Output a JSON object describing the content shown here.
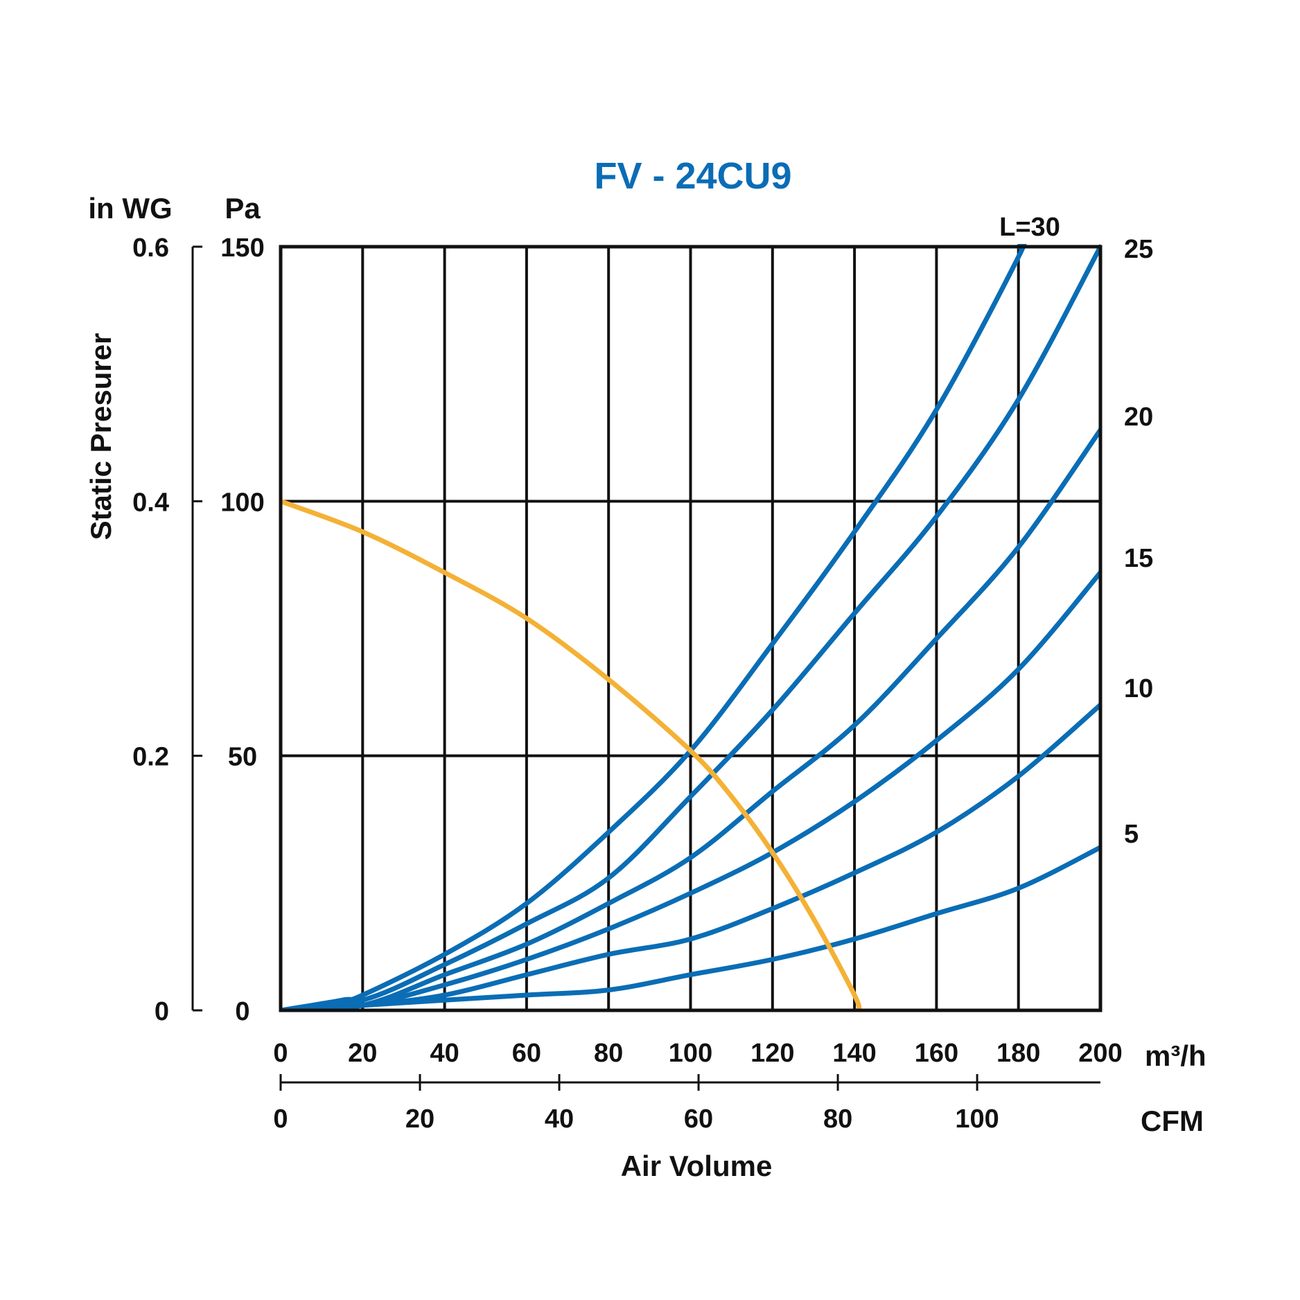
{
  "chart_data": {
    "type": "line",
    "title": "FV - 24CU9",
    "xlabel": "Air Volume",
    "ylabel": "Static Presurer",
    "x_primary": {
      "unit": "m³/h",
      "range": [
        0,
        200
      ],
      "ticks": [
        "0",
        "20",
        "40",
        "60",
        "80",
        "100",
        "120",
        "140",
        "160",
        "180",
        "200"
      ]
    },
    "x_secondary": {
      "unit": "CFM",
      "range": [
        0,
        117.7
      ],
      "ticks": [
        "0",
        "20",
        "40",
        "60",
        "80",
        "100"
      ]
    },
    "y_pa": {
      "unit": "Pa",
      "range": [
        0,
        150
      ],
      "ticks": [
        "0",
        "50",
        "100",
        "150"
      ]
    },
    "y_inwg": {
      "unit": "in WG",
      "ticks": [
        "0",
        "0.2",
        "0.4",
        "0.6"
      ]
    },
    "right_labels": [
      "L=30",
      "25",
      "20",
      "15",
      "10",
      "5"
    ],
    "fan_curve": {
      "name": "fan",
      "color": "#f4b136",
      "points": [
        [
          0,
          100
        ],
        [
          20,
          94
        ],
        [
          40,
          86
        ],
        [
          60,
          77
        ],
        [
          80,
          65
        ],
        [
          100,
          51
        ],
        [
          110,
          42
        ],
        [
          120,
          31
        ],
        [
          130,
          18
        ],
        [
          140,
          3
        ],
        [
          141,
          0
        ]
      ]
    },
    "duct_curves": [
      {
        "name": "L=30",
        "color": "#0a6db5",
        "points": [
          [
            0,
            0
          ],
          [
            15,
            2
          ],
          [
            20,
            3
          ],
          [
            40,
            11
          ],
          [
            60,
            21
          ],
          [
            80,
            35
          ],
          [
            100,
            51
          ],
          [
            120,
            72
          ],
          [
            140,
            94
          ],
          [
            160,
            118
          ],
          [
            180,
            148
          ],
          [
            180,
            150
          ]
        ]
      },
      {
        "name": "25",
        "color": "#0a6db5",
        "points": [
          [
            0,
            0
          ],
          [
            20,
            2
          ],
          [
            40,
            9
          ],
          [
            60,
            17
          ],
          [
            80,
            26
          ],
          [
            100,
            42
          ],
          [
            120,
            59
          ],
          [
            140,
            78
          ],
          [
            160,
            97
          ],
          [
            180,
            120
          ],
          [
            200,
            150
          ]
        ]
      },
      {
        "name": "20",
        "color": "#0a6db5",
        "points": [
          [
            0,
            0
          ],
          [
            20,
            1
          ],
          [
            40,
            7
          ],
          [
            60,
            13
          ],
          [
            80,
            21
          ],
          [
            100,
            30
          ],
          [
            120,
            43
          ],
          [
            140,
            56
          ],
          [
            160,
            73
          ],
          [
            180,
            91
          ],
          [
            200,
            114
          ]
        ]
      },
      {
        "name": "15",
        "color": "#0a6db5",
        "points": [
          [
            0,
            0
          ],
          [
            20,
            1
          ],
          [
            40,
            5
          ],
          [
            60,
            10
          ],
          [
            80,
            16
          ],
          [
            100,
            23
          ],
          [
            120,
            31
          ],
          [
            140,
            41
          ],
          [
            160,
            53
          ],
          [
            180,
            67
          ],
          [
            200,
            86
          ]
        ]
      },
      {
        "name": "10",
        "color": "#0a6db5",
        "points": [
          [
            0,
            0
          ],
          [
            20,
            1
          ],
          [
            40,
            3
          ],
          [
            60,
            7
          ],
          [
            80,
            11
          ],
          [
            100,
            14
          ],
          [
            120,
            20
          ],
          [
            140,
            27
          ],
          [
            160,
            35
          ],
          [
            180,
            46
          ],
          [
            200,
            60
          ]
        ]
      },
      {
        "name": "5",
        "color": "#0a6db5",
        "points": [
          [
            0,
            0
          ],
          [
            20,
            1
          ],
          [
            40,
            2
          ],
          [
            60,
            3
          ],
          [
            80,
            4
          ],
          [
            100,
            7
          ],
          [
            120,
            10
          ],
          [
            140,
            14
          ],
          [
            160,
            19
          ],
          [
            180,
            24
          ],
          [
            200,
            32
          ]
        ]
      }
    ]
  }
}
